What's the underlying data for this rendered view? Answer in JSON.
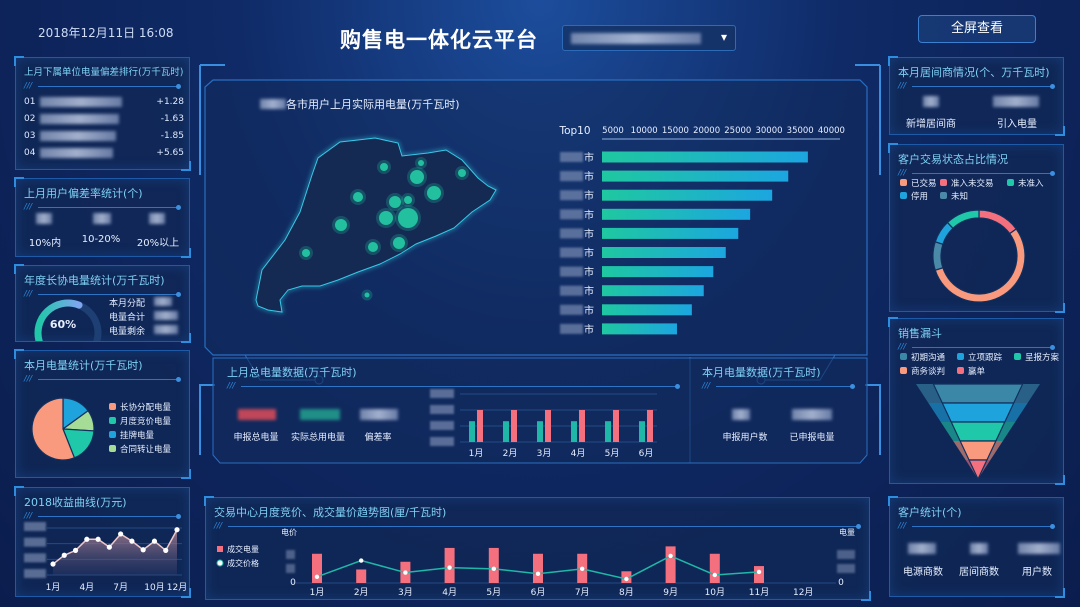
{
  "header": {
    "datetime": "2018年12月11日  16:08",
    "title": "购售电一体化云平台",
    "fullscreen_label": "全屏查看",
    "dropdown_arrow": "▾"
  },
  "colors": {
    "accent": "#2f8de0",
    "title": "#7fd0f5",
    "pink": "#f4707f",
    "salmon": "#f99a7e",
    "teal": "#1fc8a8",
    "blue": "#1ea3dc",
    "lightgreen": "#a5dc96",
    "slate": "#4a8aa8"
  },
  "left": {
    "deviation_rank": {
      "title": "上月下属单位电量偏差排行(万千瓦时)",
      "rows": [
        {
          "rank": "01",
          "value": "+1.28"
        },
        {
          "rank": "02",
          "value": "-1.63"
        },
        {
          "rank": "03",
          "value": "-1.85"
        },
        {
          "rank": "04",
          "value": "+5.65"
        }
      ]
    },
    "deviation_rate": {
      "title": "上月用户偏差率统计(个)",
      "labels": [
        "10%内",
        "10-20%",
        "20%以上"
      ]
    },
    "annual": {
      "title": "年度长协电量统计(万千瓦时)",
      "gauge_percent": 60,
      "gauge_label": "60%",
      "labels": [
        "本月分配",
        "电量合计",
        "电量剩余"
      ]
    },
    "monthly": {
      "title": "本月电量统计(万千瓦时)"
    },
    "revenue": {
      "title": "2018收益曲线(万元)"
    }
  },
  "center": {
    "map_title_suffix": "各市用户上月实际用电量(万千瓦时)",
    "last_month": {
      "title": "上月总电量数据(万千瓦时)",
      "labels": [
        "申报总电量",
        "实际总用电量",
        "偏差率"
      ]
    },
    "this_month": {
      "title": "本月电量数据(万千瓦时)",
      "labels": [
        "申报用户数",
        "已申报电量"
      ]
    },
    "trade": {
      "title": "交易中心月度竞价、成交量价趋势图(厘/千瓦时)",
      "left_axis_label": "电价",
      "right_axis_label": "电量",
      "zero": "0"
    }
  },
  "right": {
    "broker": {
      "title": "本月居间商情况(个、万千瓦时)",
      "labels": [
        "新增居间商",
        "引入电量"
      ]
    },
    "status": {
      "title": "客户交易状态占比情况"
    },
    "funnel": {
      "title": "销售漏斗"
    },
    "customers": {
      "title": "客户统计(个)",
      "labels": [
        "电源商数",
        "居间商数",
        "用户数"
      ]
    }
  },
  "chart_data": [
    {
      "id": "top10",
      "type": "bar",
      "orientation": "horizontal",
      "title": "Top10",
      "category_suffix": "市",
      "xlim": [
        0,
        40000
      ],
      "ticks": [
        5000,
        10000,
        15000,
        20000,
        25000,
        30000,
        35000,
        40000
      ],
      "values": [
        34600,
        31300,
        28600,
        24900,
        22900,
        20800,
        18700,
        17100,
        15100,
        12600
      ]
    },
    {
      "id": "monthly_pie",
      "type": "pie",
      "legend_position": "right",
      "slices": [
        {
          "name": "长协分配电量",
          "value": 56,
          "color": "#f99a7e"
        },
        {
          "name": "月度竞价电量",
          "value": 18,
          "color": "#1fc8a8"
        },
        {
          "name": "挂牌电量",
          "value": 15,
          "color": "#1ea3dc"
        },
        {
          "name": "合同转让电量",
          "value": 11,
          "color": "#a5dc96"
        }
      ]
    },
    {
      "id": "revenue_line",
      "type": "area",
      "categories": [
        "1月",
        "2月",
        "3月",
        "4月",
        "5月",
        "6月",
        "7月",
        "8月",
        "9月",
        "10月",
        "11月",
        "12月"
      ],
      "tick_labels": [
        "1月",
        "4月",
        "7月",
        "10月",
        "12月"
      ],
      "values": [
        0.7,
        1.26,
        1.57,
        2.28,
        2.28,
        1.78,
        2.62,
        2.16,
        1.61,
        2.16,
        1.57,
        2.89
      ],
      "ylim": [
        0,
        3
      ],
      "grid": true
    },
    {
      "id": "last_month_bars",
      "type": "bar",
      "categories": [
        "1月",
        "2月",
        "3月",
        "4月",
        "5月",
        "6月"
      ],
      "ylim": [
        0,
        3
      ],
      "grid": true,
      "series": [
        {
          "values": [
            1.3,
            1.3,
            1.3,
            1.3,
            1.3,
            1.3
          ],
          "color": "#1fb8a8"
        },
        {
          "values": [
            2,
            2,
            2,
            2,
            2,
            2
          ],
          "color": "#f4707f"
        }
      ]
    },
    {
      "id": "trade_combo",
      "type": "bar",
      "categories": [
        "1月",
        "2月",
        "3月",
        "4月",
        "5月",
        "6月",
        "7月",
        "8月",
        "9月",
        "10月",
        "11月",
        "12月"
      ],
      "ylim": [
        0,
        130
      ],
      "series": [
        {
          "name": "成交电量",
          "kind": "bar",
          "values": [
            95,
            44,
            69,
            114,
            114,
            95,
            95,
            38,
            119,
            95,
            55,
            null
          ],
          "color": "#f4707f"
        },
        {
          "name": "成交价格",
          "kind": "line",
          "values": [
            20,
            73,
            34,
            50,
            46,
            30,
            46,
            13,
            88,
            26,
            36,
            null
          ],
          "color": "#1fb8a8"
        }
      ]
    },
    {
      "id": "status_donut",
      "type": "pie",
      "style": "donut",
      "legend_position": "top",
      "slices": [
        {
          "name": "已交易",
          "value": 55,
          "color": "#f99a7e"
        },
        {
          "name": "准入未交易",
          "value": 15,
          "color": "#f4707f"
        },
        {
          "name": "未准入",
          "value": 12,
          "color": "#1fc8a8"
        },
        {
          "name": "停用",
          "value": 8,
          "color": "#1ea3dc"
        },
        {
          "name": "未知",
          "value": 10,
          "color": "#4a8aa8"
        }
      ]
    },
    {
      "id": "sales_funnel",
      "type": "funnel",
      "legend_position": "top",
      "stages": [
        {
          "name": "初期沟通",
          "color": "#3a87a8"
        },
        {
          "name": "立项跟踪",
          "color": "#1ea3dc"
        },
        {
          "name": "呈报方案",
          "color": "#1fc8a8"
        },
        {
          "name": "商务谈判",
          "color": "#f99a7e"
        },
        {
          "name": "赢单",
          "color": "#f4707f"
        }
      ]
    }
  ]
}
